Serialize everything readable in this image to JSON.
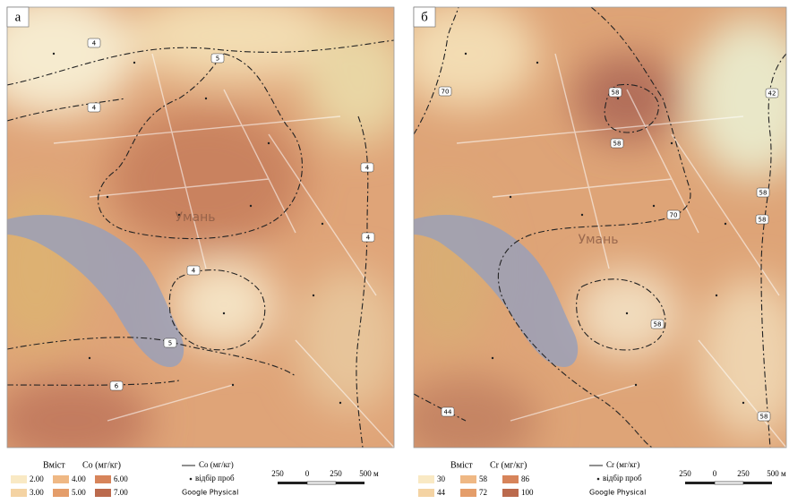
{
  "panels": [
    {
      "label": "а",
      "city": "Умань",
      "contour_labels": [
        "4",
        "5",
        "4",
        "4",
        "4",
        "4",
        "5",
        "6"
      ],
      "legend": {
        "title": "Вміст",
        "unit": "Co (мг/кг)",
        "classes": [
          "2.00",
          "3.00",
          "4.00",
          "5.00",
          "6.00",
          "7.00"
        ],
        "colors": [
          "#f9e9c4",
          "#f4d3a3",
          "#efb884",
          "#e49d6a",
          "#d7845a",
          "#bb6a4d"
        ],
        "line": "Co (мг/кг)",
        "points": "відбір проб",
        "basemap": "Google Physical",
        "scale": [
          "250",
          "0",
          "250",
          "500 м"
        ]
      }
    },
    {
      "label": "б",
      "city": "Умань",
      "contour_labels": [
        "70",
        "58",
        "42",
        "58",
        "58",
        "70",
        "58",
        "58",
        "44",
        "58"
      ],
      "legend": {
        "title": "Вміст",
        "unit": "Cr (мг/кг)",
        "classes": [
          "30",
          "44",
          "58",
          "72",
          "86",
          "100"
        ],
        "colors": [
          "#f9e9c4",
          "#f4d3a3",
          "#efb884",
          "#e49d6a",
          "#d7845a",
          "#bb6a4d"
        ],
        "line": "Cr (мг/кг)",
        "points": "відбір проб",
        "basemap": "Google Physical",
        "scale": [
          "250",
          "0",
          "250",
          "500 м"
        ]
      }
    }
  ]
}
